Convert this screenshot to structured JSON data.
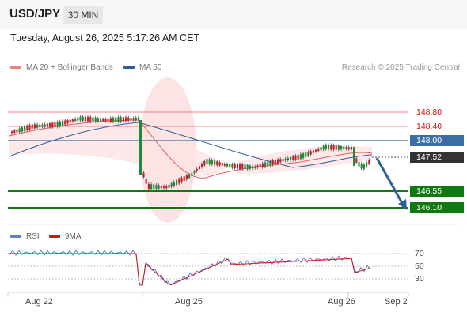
{
  "header": {
    "symbol": "USD/JPY",
    "timeframe": "30 MIN"
  },
  "datetime": "Tuesday, August 26, 2025 5:17:26 AM CET",
  "legend": [
    {
      "label": "MA 20 + Bollinger Bands",
      "color": "#f08080"
    },
    {
      "label": "MA 50",
      "color": "#2f5f9a"
    }
  ],
  "credit": "Research © 2025 Trading Central",
  "levels": {
    "r2": "148.80",
    "r1": "148.40",
    "pivot": "148.00",
    "last": "147.52",
    "s1": "146.55",
    "s2": "146.10"
  },
  "rsi": {
    "labels": [
      "RSI",
      "9MA"
    ],
    "colors": [
      "#5b7fd6",
      "#d21414"
    ],
    "levels": [
      "70",
      "50",
      "30"
    ]
  },
  "x_axis": [
    "Aug 22",
    "Aug 25",
    "Aug 26",
    "Sep 2"
  ],
  "colors": {
    "resistance": "#f08080",
    "pivot": "#3a6ea5",
    "support": "#0f7a0f",
    "arrow": "#2f5f9a",
    "band": "#fde3e3"
  }
}
